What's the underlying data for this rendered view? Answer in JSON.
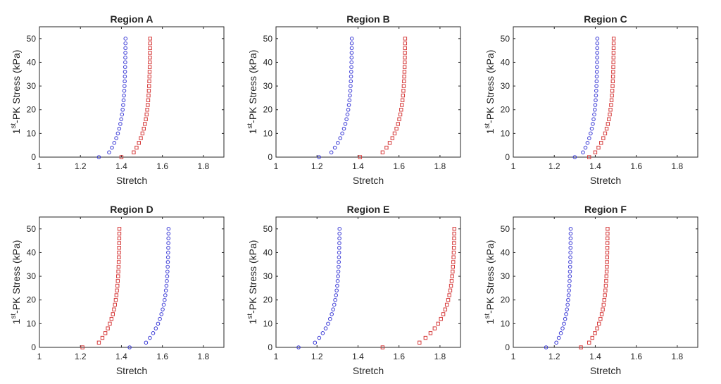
{
  "chart_data": [
    {
      "type": "scatter",
      "title": "Region A",
      "xlabel": "Stretch",
      "ylabel": {
        "base": "1",
        "sup": "st",
        "rest": "-PK Stress (kPa)"
      },
      "xlim": [
        1,
        1.9
      ],
      "ylim": [
        0,
        55
      ],
      "xticks": [
        1,
        1.2,
        1.4,
        1.6,
        1.8
      ],
      "yticks": [
        0,
        10,
        20,
        30,
        40,
        50
      ],
      "series": [
        {
          "marker": "circle",
          "color": "#3b3bd6",
          "curve": {
            "x0": 1.29,
            "x1": 1.42,
            "first_step": 1.34,
            "ymax": 50,
            "n": 26,
            "k": 4.5
          }
        },
        {
          "marker": "square",
          "color": "#d63b3b",
          "curve": {
            "x0": 1.4,
            "x1": 1.54,
            "first_step": 1.46,
            "ymax": 50,
            "n": 26,
            "k": 4.5
          }
        }
      ]
    },
    {
      "type": "scatter",
      "title": "Region B",
      "xlabel": "Stretch",
      "ylabel": {
        "base": "1",
        "sup": "st",
        "rest": "-PK Stress (kPa)"
      },
      "xlim": [
        1,
        1.9
      ],
      "ylim": [
        0,
        55
      ],
      "xticks": [
        1,
        1.2,
        1.4,
        1.6,
        1.8
      ],
      "yticks": [
        0,
        10,
        20,
        30,
        40,
        50
      ],
      "series": [
        {
          "marker": "circle",
          "color": "#3b3bd6",
          "curve": {
            "x0": 1.21,
            "x1": 1.37,
            "first_step": 1.27,
            "ymax": 50,
            "n": 26,
            "k": 4.5
          }
        },
        {
          "marker": "square",
          "color": "#d63b3b",
          "curve": {
            "x0": 1.41,
            "x1": 1.63,
            "first_step": 1.52,
            "ymax": 50,
            "n": 26,
            "k": 4.5
          }
        }
      ]
    },
    {
      "type": "scatter",
      "title": "Region C",
      "xlabel": "Stretch",
      "ylabel": {
        "base": "1",
        "sup": "st",
        "rest": "-PK Stress (kPa)"
      },
      "xlim": [
        1,
        1.9
      ],
      "ylim": [
        0,
        55
      ],
      "xticks": [
        1,
        1.2,
        1.4,
        1.6,
        1.8
      ],
      "yticks": [
        0,
        10,
        20,
        30,
        40,
        50
      ],
      "series": [
        {
          "marker": "circle",
          "color": "#3b3bd6",
          "curve": {
            "x0": 1.3,
            "x1": 1.41,
            "first_step": 1.34,
            "ymax": 50,
            "n": 26,
            "k": 4.5
          }
        },
        {
          "marker": "square",
          "color": "#d63b3b",
          "curve": {
            "x0": 1.37,
            "x1": 1.49,
            "first_step": 1.4,
            "ymax": 50,
            "n": 26,
            "k": 4.5
          }
        }
      ]
    },
    {
      "type": "scatter",
      "title": "Region D",
      "xlabel": "Stretch",
      "ylabel": {
        "base": "1",
        "sup": "st",
        "rest": "-PK Stress (kPa)"
      },
      "xlim": [
        1,
        1.9
      ],
      "ylim": [
        0,
        55
      ],
      "xticks": [
        1,
        1.2,
        1.4,
        1.6,
        1.8
      ],
      "yticks": [
        0,
        10,
        20,
        30,
        40,
        50
      ],
      "series": [
        {
          "marker": "circle",
          "color": "#3b3bd6",
          "curve": {
            "x0": 1.44,
            "x1": 1.63,
            "first_step": 1.52,
            "ymax": 50,
            "n": 26,
            "k": 4.5
          }
        },
        {
          "marker": "square",
          "color": "#d63b3b",
          "curve": {
            "x0": 1.21,
            "x1": 1.39,
            "first_step": 1.29,
            "ymax": 50,
            "n": 26,
            "k": 4.5
          }
        }
      ]
    },
    {
      "type": "scatter",
      "title": "Region E",
      "xlabel": "Stretch",
      "ylabel": {
        "base": "1",
        "sup": "st",
        "rest": "-PK Stress (kPa)"
      },
      "xlim": [
        1,
        1.9
      ],
      "ylim": [
        0,
        55
      ],
      "xticks": [
        1,
        1.2,
        1.4,
        1.6,
        1.8
      ],
      "yticks": [
        0,
        10,
        20,
        30,
        40,
        50
      ],
      "series": [
        {
          "marker": "circle",
          "color": "#3b3bd6",
          "curve": {
            "x0": 1.11,
            "x1": 1.31,
            "first_step": 1.19,
            "ymax": 50,
            "n": 26,
            "k": 4.5
          }
        },
        {
          "marker": "square",
          "color": "#d63b3b",
          "curve": {
            "x0": 1.52,
            "x1": 1.87,
            "first_step": 1.7,
            "ymax": 50,
            "n": 26,
            "k": 4.5
          }
        }
      ]
    },
    {
      "type": "scatter",
      "title": "Region F",
      "xlabel": "Stretch",
      "ylabel": {
        "base": "1",
        "sup": "st",
        "rest": "-PK Stress (kPa)"
      },
      "xlim": [
        1,
        1.9
      ],
      "ylim": [
        0,
        55
      ],
      "xticks": [
        1,
        1.2,
        1.4,
        1.6,
        1.8
      ],
      "yticks": [
        0,
        10,
        20,
        30,
        40,
        50
      ],
      "series": [
        {
          "marker": "circle",
          "color": "#3b3bd6",
          "curve": {
            "x0": 1.16,
            "x1": 1.28,
            "first_step": 1.21,
            "ymax": 50,
            "n": 26,
            "k": 4.5
          }
        },
        {
          "marker": "square",
          "color": "#d63b3b",
          "curve": {
            "x0": 1.33,
            "x1": 1.46,
            "first_step": 1.37,
            "ymax": 50,
            "n": 26,
            "k": 4.5
          }
        }
      ]
    }
  ]
}
